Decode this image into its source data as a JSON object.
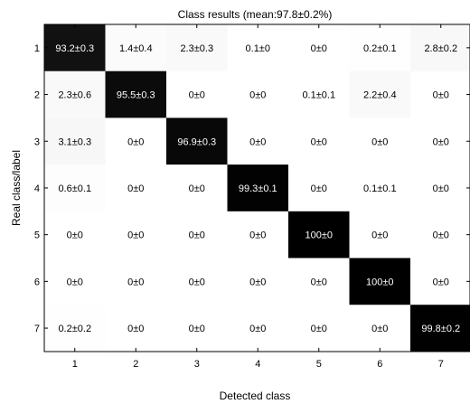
{
  "chart_data": {
    "type": "heatmap",
    "title": "Class results (mean:97.8±0.2%)",
    "xlabel": "Detected class",
    "ylabel": "Real class/label",
    "x_categories": [
      "1",
      "2",
      "3",
      "4",
      "5",
      "6",
      "7"
    ],
    "y_categories": [
      "1",
      "2",
      "3",
      "4",
      "5",
      "6",
      "7"
    ],
    "colormap": "white-to-black (higher value = darker)",
    "grid": false,
    "values": [
      [
        93.2,
        1.4,
        2.3,
        0.1,
        0,
        0.2,
        2.8
      ],
      [
        2.3,
        95.5,
        0,
        0,
        0.1,
        2.2,
        0
      ],
      [
        3.1,
        0,
        96.9,
        0,
        0,
        0,
        0
      ],
      [
        0.6,
        0,
        0,
        99.3,
        0,
        0.1,
        0
      ],
      [
        0,
        0,
        0,
        0,
        100,
        0,
        0
      ],
      [
        0,
        0,
        0,
        0,
        0,
        100,
        0
      ],
      [
        0.2,
        0,
        0,
        0,
        0,
        0,
        99.8
      ]
    ],
    "cell_labels": [
      [
        "93.2±0.3",
        "1.4±0.4",
        "2.3±0.3",
        "0.1±0",
        "0±0",
        "0.2±0.1",
        "2.8±0.2"
      ],
      [
        "2.3±0.6",
        "95.5±0.3",
        "0±0",
        "0±0",
        "0.1±0.1",
        "2.2±0.4",
        "0±0"
      ],
      [
        "3.1±0.3",
        "0±0",
        "96.9±0.3",
        "0±0",
        "0±0",
        "0±0",
        "0±0"
      ],
      [
        "0.6±0.1",
        "0±0",
        "0±0",
        "99.3±0.1",
        "0±0",
        "0.1±0.1",
        "0±0"
      ],
      [
        "0±0",
        "0±0",
        "0±0",
        "0±0",
        "100±0",
        "0±0",
        "0±0"
      ],
      [
        "0±0",
        "0±0",
        "0±0",
        "0±0",
        "0±0",
        "100±0",
        "0±0"
      ],
      [
        "0.2±0.2",
        "0±0",
        "0±0",
        "0±0",
        "0±0",
        "0±0",
        "99.8±0.2"
      ]
    ]
  }
}
